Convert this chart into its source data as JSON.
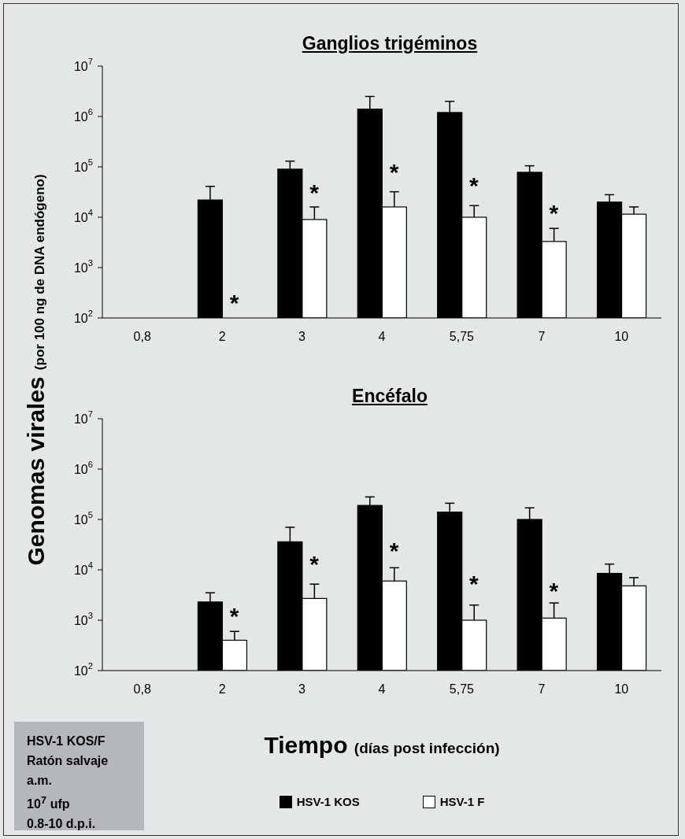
{
  "chart_data": [
    {
      "type": "bar",
      "title": "Ganglios trigéminos",
      "ylabel": "Genomas virales (por 100 ng de DNA endógeno)",
      "log": true,
      "ylim": [
        100,
        10000000
      ],
      "legend": "bottom",
      "yticks": [
        {
          "value": 100,
          "label": "10$^{2}$"
        },
        {
          "value": 1000,
          "label": "10$^{3}$"
        },
        {
          "value": 10000,
          "label": "10$^{4}$"
        },
        {
          "value": 100000,
          "label": "10$^{5}$"
        },
        {
          "value": 1000000,
          "label": "10$^{6}$"
        },
        {
          "value": 10000000,
          "label": "10$^{7}$"
        }
      ],
      "categories": [
        "0,8",
        "2",
        "3",
        "4",
        "5,75",
        "7",
        "10"
      ],
      "series": [
        {
          "name": "HSV-1 KOS",
          "color": "#000000",
          "values": [
            null,
            22000,
            90000,
            1400000,
            1200000,
            78000,
            20000
          ],
          "errors": [
            null,
            [
              22000,
              41000
            ],
            [
              90000,
              130000
            ],
            [
              1400000,
              2500000
            ],
            [
              1200000,
              2000000
            ],
            [
              78000,
              105000
            ],
            [
              20000,
              28000
            ]
          ]
        },
        {
          "name": "HSV-1 F",
          "color": "#ffffff",
          "values": [
            null,
            null,
            9000,
            16000,
            10000,
            3300,
            11500
          ],
          "errors": [
            null,
            null,
            [
              9000,
              16000
            ],
            [
              16000,
              32000
            ],
            [
              10000,
              17000
            ],
            [
              3300,
              6000
            ],
            [
              11500,
              16000
            ]
          ]
        }
      ],
      "annotations": [
        {
          "text": "*",
          "x": "2",
          "y": 230
        },
        {
          "text": "*",
          "x": "3",
          "y": 35000
        },
        {
          "text": "*",
          "x": "4",
          "y": 90000
        },
        {
          "text": "*",
          "x": "5,75",
          "y": 48000
        },
        {
          "text": "*",
          "x": "7",
          "y": 14000
        }
      ]
    },
    {
      "type": "bar",
      "title": "Encéfalo",
      "xlabel": "Tiempo (días post infección)",
      "log": true,
      "ylim": [
        100,
        10000000
      ],
      "yticks": [
        {
          "value": 100,
          "label": "10$^{2}$"
        },
        {
          "value": 1000,
          "label": "10$^{3}$"
        },
        {
          "value": 10000,
          "label": "10$^{4}$"
        },
        {
          "value": 100000,
          "label": "10$^{5}$"
        },
        {
          "value": 1000000,
          "label": "10$^{6}$"
        },
        {
          "value": 10000000,
          "label": "10$^{7}$"
        }
      ],
      "categories": [
        "0,8",
        "2",
        "3",
        "4",
        "5,75",
        "7",
        "10"
      ],
      "series": [
        {
          "color": "#000000",
          "values": [
            null,
            2300,
            36000,
            190000,
            140000,
            100000,
            8500
          ],
          "errors": [
            null,
            [
              2300,
              3500
            ],
            [
              36000,
              70000
            ],
            [
              190000,
              280000
            ],
            [
              140000,
              210000
            ],
            [
              100000,
              170000
            ],
            [
              8500,
              13000
            ]
          ]
        },
        {
          "color": "#ffffff",
          "values": [
            null,
            400,
            2700,
            6000,
            1000,
            1100,
            4800
          ],
          "errors": [
            null,
            [
              400,
              600
            ],
            [
              2700,
              5200
            ],
            [
              6000,
              11000
            ],
            [
              1000,
              2000
            ],
            [
              1100,
              2200
            ],
            [
              4800,
              7000
            ]
          ]
        }
      ],
      "annotations": [
        {
          "text": "*",
          "x": "2",
          "y": 1400
        },
        {
          "text": "*",
          "x": "3",
          "y": 15000
        },
        {
          "text": "*",
          "x": "4",
          "y": 27000
        },
        {
          "text": "*",
          "x": "5,75",
          "y": 6000
        },
        {
          "text": "*",
          "x": "7",
          "y": 4400
        },
        "HSV-1 KOS/F",
        "Ratón salvaje",
        "a.m.",
        "10$^{7}$ ufp",
        "0.8-10 d.p.i."
      ]
    }
  ]
}
